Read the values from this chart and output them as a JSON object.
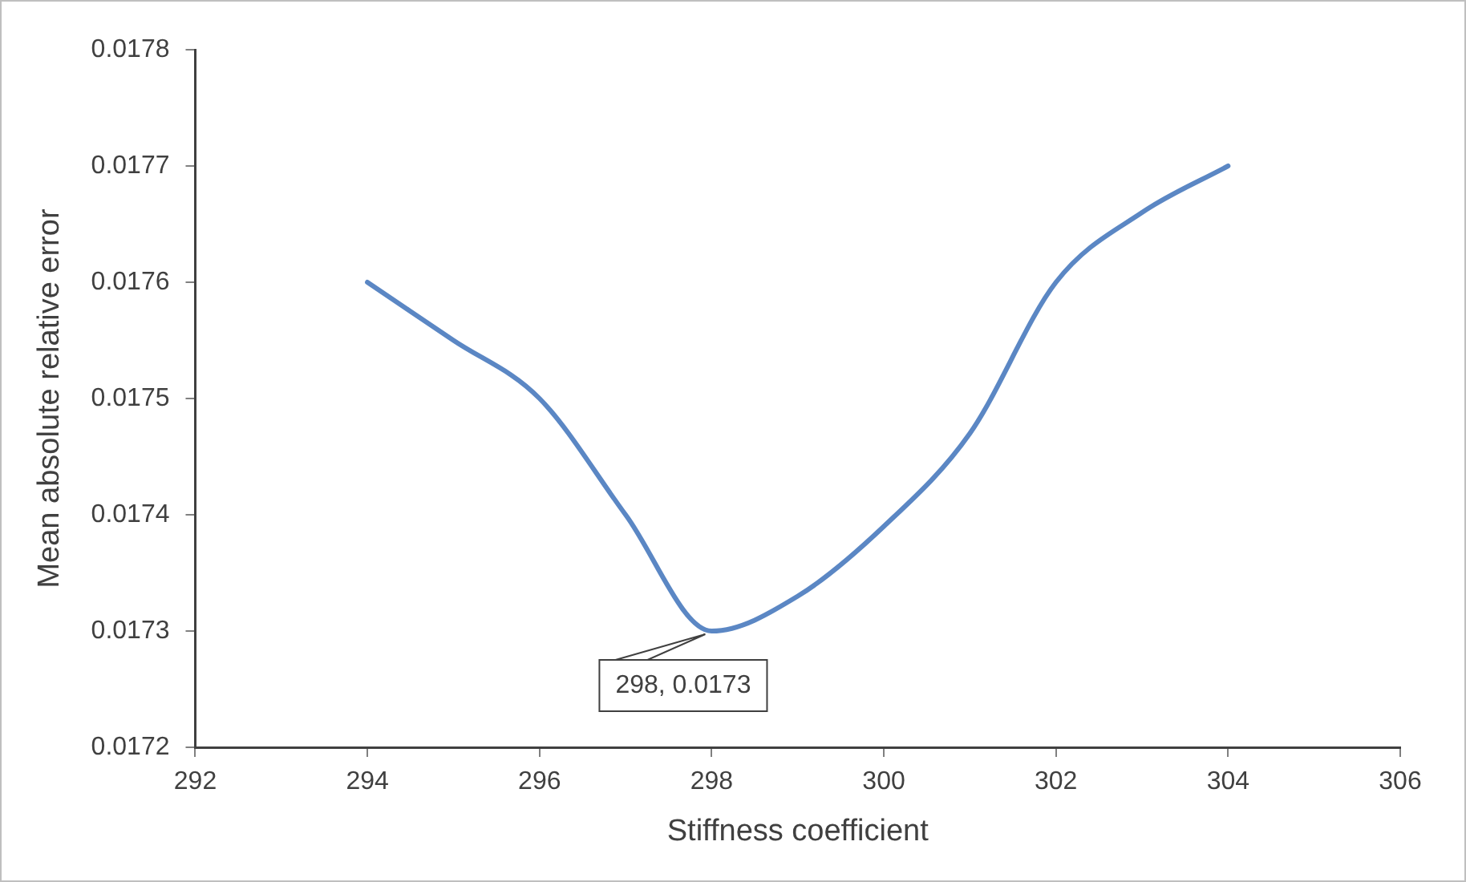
{
  "chart_data": {
    "type": "line",
    "xlabel": "Stiffness coefficient",
    "ylabel": "Mean absolute relative error",
    "x": [
      294,
      295,
      296,
      297,
      298,
      299,
      300,
      301,
      302,
      303,
      304
    ],
    "series": [
      {
        "color": "#5b87c4",
        "values": [
          0.0176,
          0.01755,
          0.0175,
          0.0174,
          0.0173,
          0.01733,
          0.01739,
          0.01747,
          0.0176,
          0.01766,
          0.0177
        ]
      }
    ],
    "xlim": [
      292,
      306
    ],
    "xticks": [
      292,
      294,
      296,
      298,
      300,
      302,
      304,
      306
    ],
    "ylim": [
      0.0172,
      0.0178
    ],
    "yticks": [
      0.0172,
      0.0173,
      0.0174,
      0.0175,
      0.0176,
      0.0177,
      0.0178
    ],
    "annotations": [
      {
        "text": "298, 0.0173",
        "x": 298,
        "y": 0.0173
      }
    ],
    "grid": false,
    "legend": false,
    "marker": "none",
    "line_style": "solid"
  }
}
